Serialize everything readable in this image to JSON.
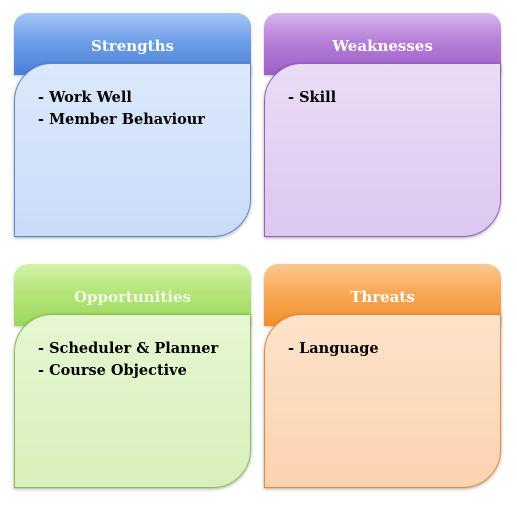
{
  "swot": {
    "strengths": {
      "title": "Strengths",
      "items": [
        "- Work Well",
        "- Member Behaviour"
      ],
      "color": "#6f9fe8"
    },
    "weaknesses": {
      "title": "Weaknesses",
      "items": [
        "- Skill"
      ],
      "color": "#b57fd8"
    },
    "opportunities": {
      "title": "Opportunities",
      "items": [
        "- Scheduler & Planner",
        "- Course Objective"
      ],
      "color": "#b5e57a"
    },
    "threats": {
      "title": "Threats",
      "items": [
        "- Language"
      ],
      "color": "#f9a957"
    }
  }
}
